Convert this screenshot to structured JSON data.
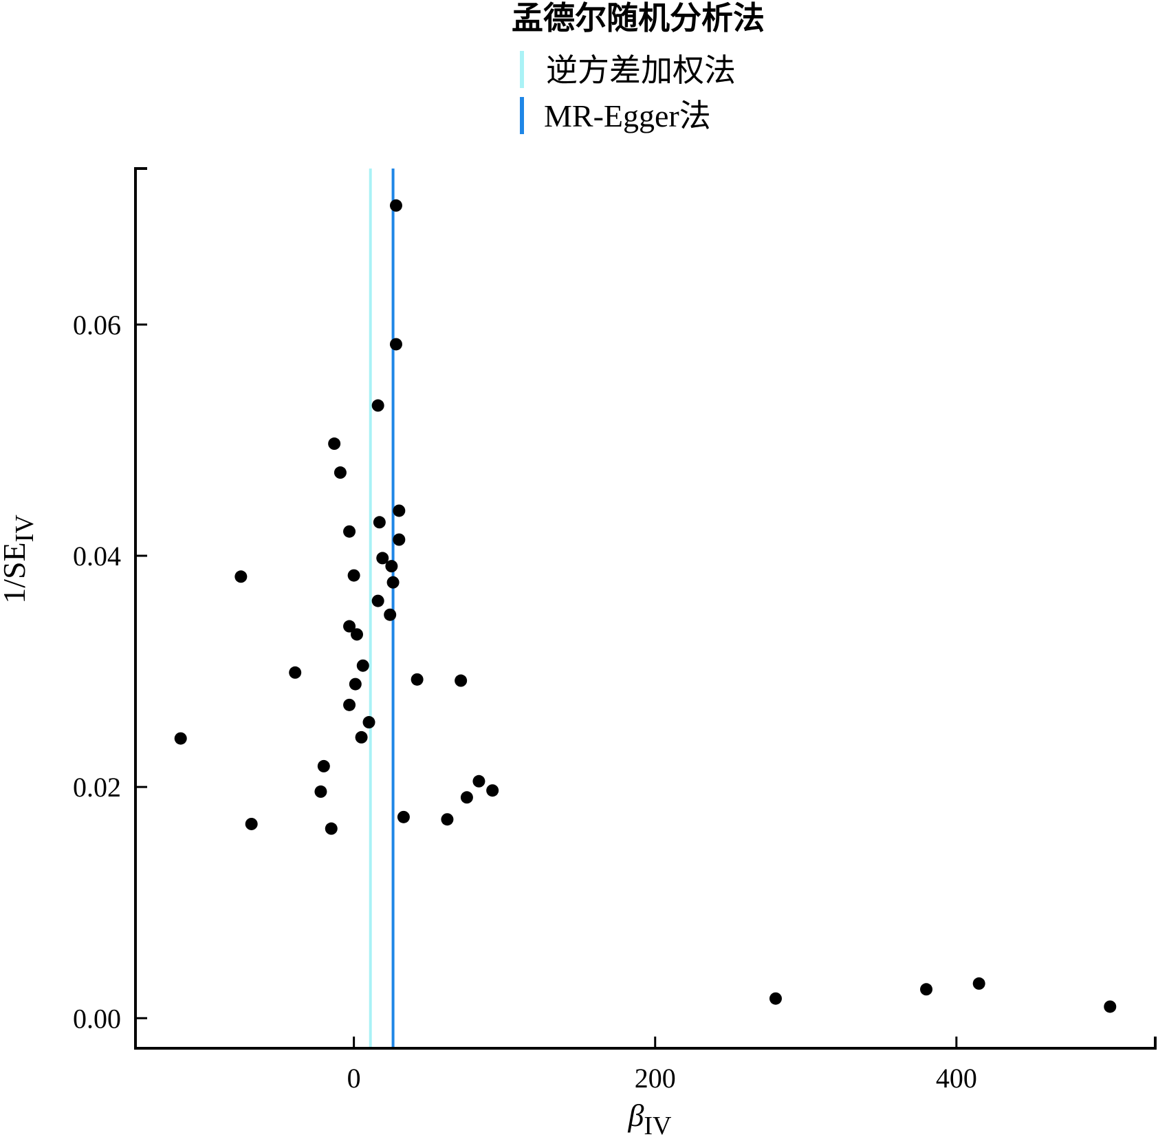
{
  "chart_data": {
    "type": "scatter",
    "legend": {
      "title": "孟德尔随机分析法",
      "placement": "top-center",
      "entries": [
        {
          "label": "逆方差加权法",
          "color": "#aaf2f6"
        },
        {
          "label": "MR-Egger法",
          "color": "#1f86e6"
        }
      ]
    },
    "xlabel": {
      "main": "β",
      "sub": "IV"
    },
    "ylabel": {
      "main": "1/SE",
      "sub": "IV"
    },
    "xlim": [
      -145,
      532
    ],
    "ylim": [
      -0.0026,
      0.0735
    ],
    "xticks": [
      {
        "value": 0,
        "label": "0"
      },
      {
        "value": 200,
        "label": "200"
      },
      {
        "value": 400,
        "label": "400"
      }
    ],
    "yticks": [
      {
        "value": 0.0,
        "label": "0.00"
      },
      {
        "value": 0.02,
        "label": "0.02"
      },
      {
        "value": 0.04,
        "label": "0.04"
      },
      {
        "value": 0.06,
        "label": "0.06"
      }
    ],
    "vlines": [
      {
        "name": "逆方差加权法",
        "x": 11,
        "color": "#aaf2f6"
      },
      {
        "name": "MR-Egger法",
        "x": 26,
        "color": "#1f86e6"
      }
    ],
    "point_color": "#000000",
    "series": [
      {
        "points": [
          {
            "x": 28,
            "y": 0.0703
          },
          {
            "x": 28,
            "y": 0.0583
          },
          {
            "x": 16,
            "y": 0.053
          },
          {
            "x": -13,
            "y": 0.0497
          },
          {
            "x": -9,
            "y": 0.0472
          },
          {
            "x": 30,
            "y": 0.0439
          },
          {
            "x": 17,
            "y": 0.0429
          },
          {
            "x": 30,
            "y": 0.0414
          },
          {
            "x": -3,
            "y": 0.0421
          },
          {
            "x": 19,
            "y": 0.0398
          },
          {
            "x": 25,
            "y": 0.0391
          },
          {
            "x": -75,
            "y": 0.0382
          },
          {
            "x": 0,
            "y": 0.0383
          },
          {
            "x": 26,
            "y": 0.0377
          },
          {
            "x": 16,
            "y": 0.0361
          },
          {
            "x": 24,
            "y": 0.0349
          },
          {
            "x": -3,
            "y": 0.0339
          },
          {
            "x": 2,
            "y": 0.0332
          },
          {
            "x": -39,
            "y": 0.0299
          },
          {
            "x": 6,
            "y": 0.0305
          },
          {
            "x": 42,
            "y": 0.0293
          },
          {
            "x": 71,
            "y": 0.0292
          },
          {
            "x": 1,
            "y": 0.0289
          },
          {
            "x": -3,
            "y": 0.0271
          },
          {
            "x": 10,
            "y": 0.0256
          },
          {
            "x": 5,
            "y": 0.0243
          },
          {
            "x": -115,
            "y": 0.0242
          },
          {
            "x": -20,
            "y": 0.0218
          },
          {
            "x": -22,
            "y": 0.0196
          },
          {
            "x": 83,
            "y": 0.0205
          },
          {
            "x": 92,
            "y": 0.0197
          },
          {
            "x": 75,
            "y": 0.0191
          },
          {
            "x": 33,
            "y": 0.0174
          },
          {
            "x": 62,
            "y": 0.0172
          },
          {
            "x": -68,
            "y": 0.0168
          },
          {
            "x": -15,
            "y": 0.0164
          },
          {
            "x": 280,
            "y": 0.0017
          },
          {
            "x": 380,
            "y": 0.0025
          },
          {
            "x": 415,
            "y": 0.003
          },
          {
            "x": 502,
            "y": 0.001
          }
        ]
      }
    ]
  }
}
